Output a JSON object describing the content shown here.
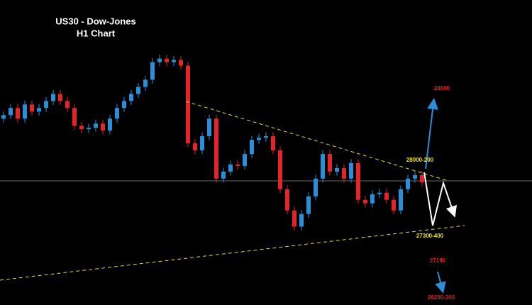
{
  "chart_data": {
    "type": "candlestick",
    "title": "US30 - Dow-Jones",
    "subtitle": "H1 Chart",
    "up_color": "#2a8fd8",
    "down_color": "#e0262a",
    "ylim": [
      26700,
      29400
    ],
    "open": [
      28350,
      28381,
      28444,
      28350,
      28475,
      28412,
      28444,
      28506,
      28569,
      28506,
      28444,
      28287,
      28256,
      28269,
      28306,
      28244,
      28350,
      28444,
      28506,
      28569,
      28631,
      28694,
      28850,
      28881,
      28850,
      28869,
      28819,
      28131,
      28069,
      28194,
      28350,
      27819,
      27881,
      27944,
      27931,
      28037,
      28162,
      28181,
      28194,
      28069,
      27725,
      27537,
      27394,
      27506,
      27662,
      27819,
      28037,
      27881,
      27912,
      27819,
      27956,
      27631,
      27600,
      27681,
      27694,
      27631,
      27537,
      27725,
      27819,
      27850
    ],
    "high": [
      28416,
      28479,
      28479,
      28510,
      28510,
      28479,
      28541,
      28604,
      28604,
      28541,
      28479,
      28322,
      28304,
      28341,
      28341,
      28385,
      28479,
      28541,
      28604,
      28666,
      28729,
      28885,
      28916,
      28916,
      28904,
      28904,
      28854,
      28166,
      28229,
      28385,
      28385,
      27916,
      27979,
      27979,
      28072,
      28197,
      28216,
      28229,
      28229,
      28104,
      27760,
      27572,
      27541,
      27697,
      27854,
      28072,
      28072,
      27947,
      27947,
      27991,
      27991,
      27666,
      27716,
      27729,
      27729,
      27666,
      27760,
      27854,
      27885,
      27885
    ],
    "low": [
      28315,
      28346,
      28315,
      28315,
      28377,
      28377,
      28409,
      28471,
      28471,
      28409,
      28252,
      28221,
      28221,
      28234,
      28209,
      28209,
      28315,
      28409,
      28471,
      28534,
      28596,
      28659,
      28815,
      28815,
      28815,
      28784,
      28096,
      28034,
      28034,
      28159,
      27784,
      27784,
      27846,
      27896,
      27896,
      28002,
      28127,
      28146,
      28034,
      27690,
      27502,
      27359,
      27359,
      27471,
      27627,
      27784,
      27846,
      27846,
      27784,
      27784,
      27596,
      27565,
      27565,
      27646,
      27596,
      27502,
      27502,
      27690,
      27784,
      27752
    ],
    "close": [
      28381,
      28444,
      28350,
      28475,
      28412,
      28444,
      28506,
      28569,
      28506,
      28444,
      28287,
      28256,
      28269,
      28306,
      28244,
      28350,
      28444,
      28506,
      28569,
      28631,
      28694,
      28850,
      28881,
      28850,
      28869,
      28819,
      28131,
      28069,
      28194,
      28350,
      27819,
      27881,
      27944,
      27931,
      28037,
      28162,
      28181,
      28194,
      28069,
      27725,
      27537,
      27394,
      27506,
      27662,
      27819,
      28037,
      27881,
      27912,
      27819,
      27956,
      27631,
      27600,
      27681,
      27694,
      27631,
      27537,
      27725,
      27819,
      27850,
      27787
    ],
    "annotations": [
      {
        "text": "28600",
        "color": "#e02020"
      },
      {
        "text": "28000-200",
        "color": "#f2e600"
      },
      {
        "text": "27300-400",
        "color": "#f2e600"
      },
      {
        "text": "27190",
        "color": "#e02020"
      },
      {
        "text": "26200-300",
        "color": "#e02020"
      }
    ]
  }
}
